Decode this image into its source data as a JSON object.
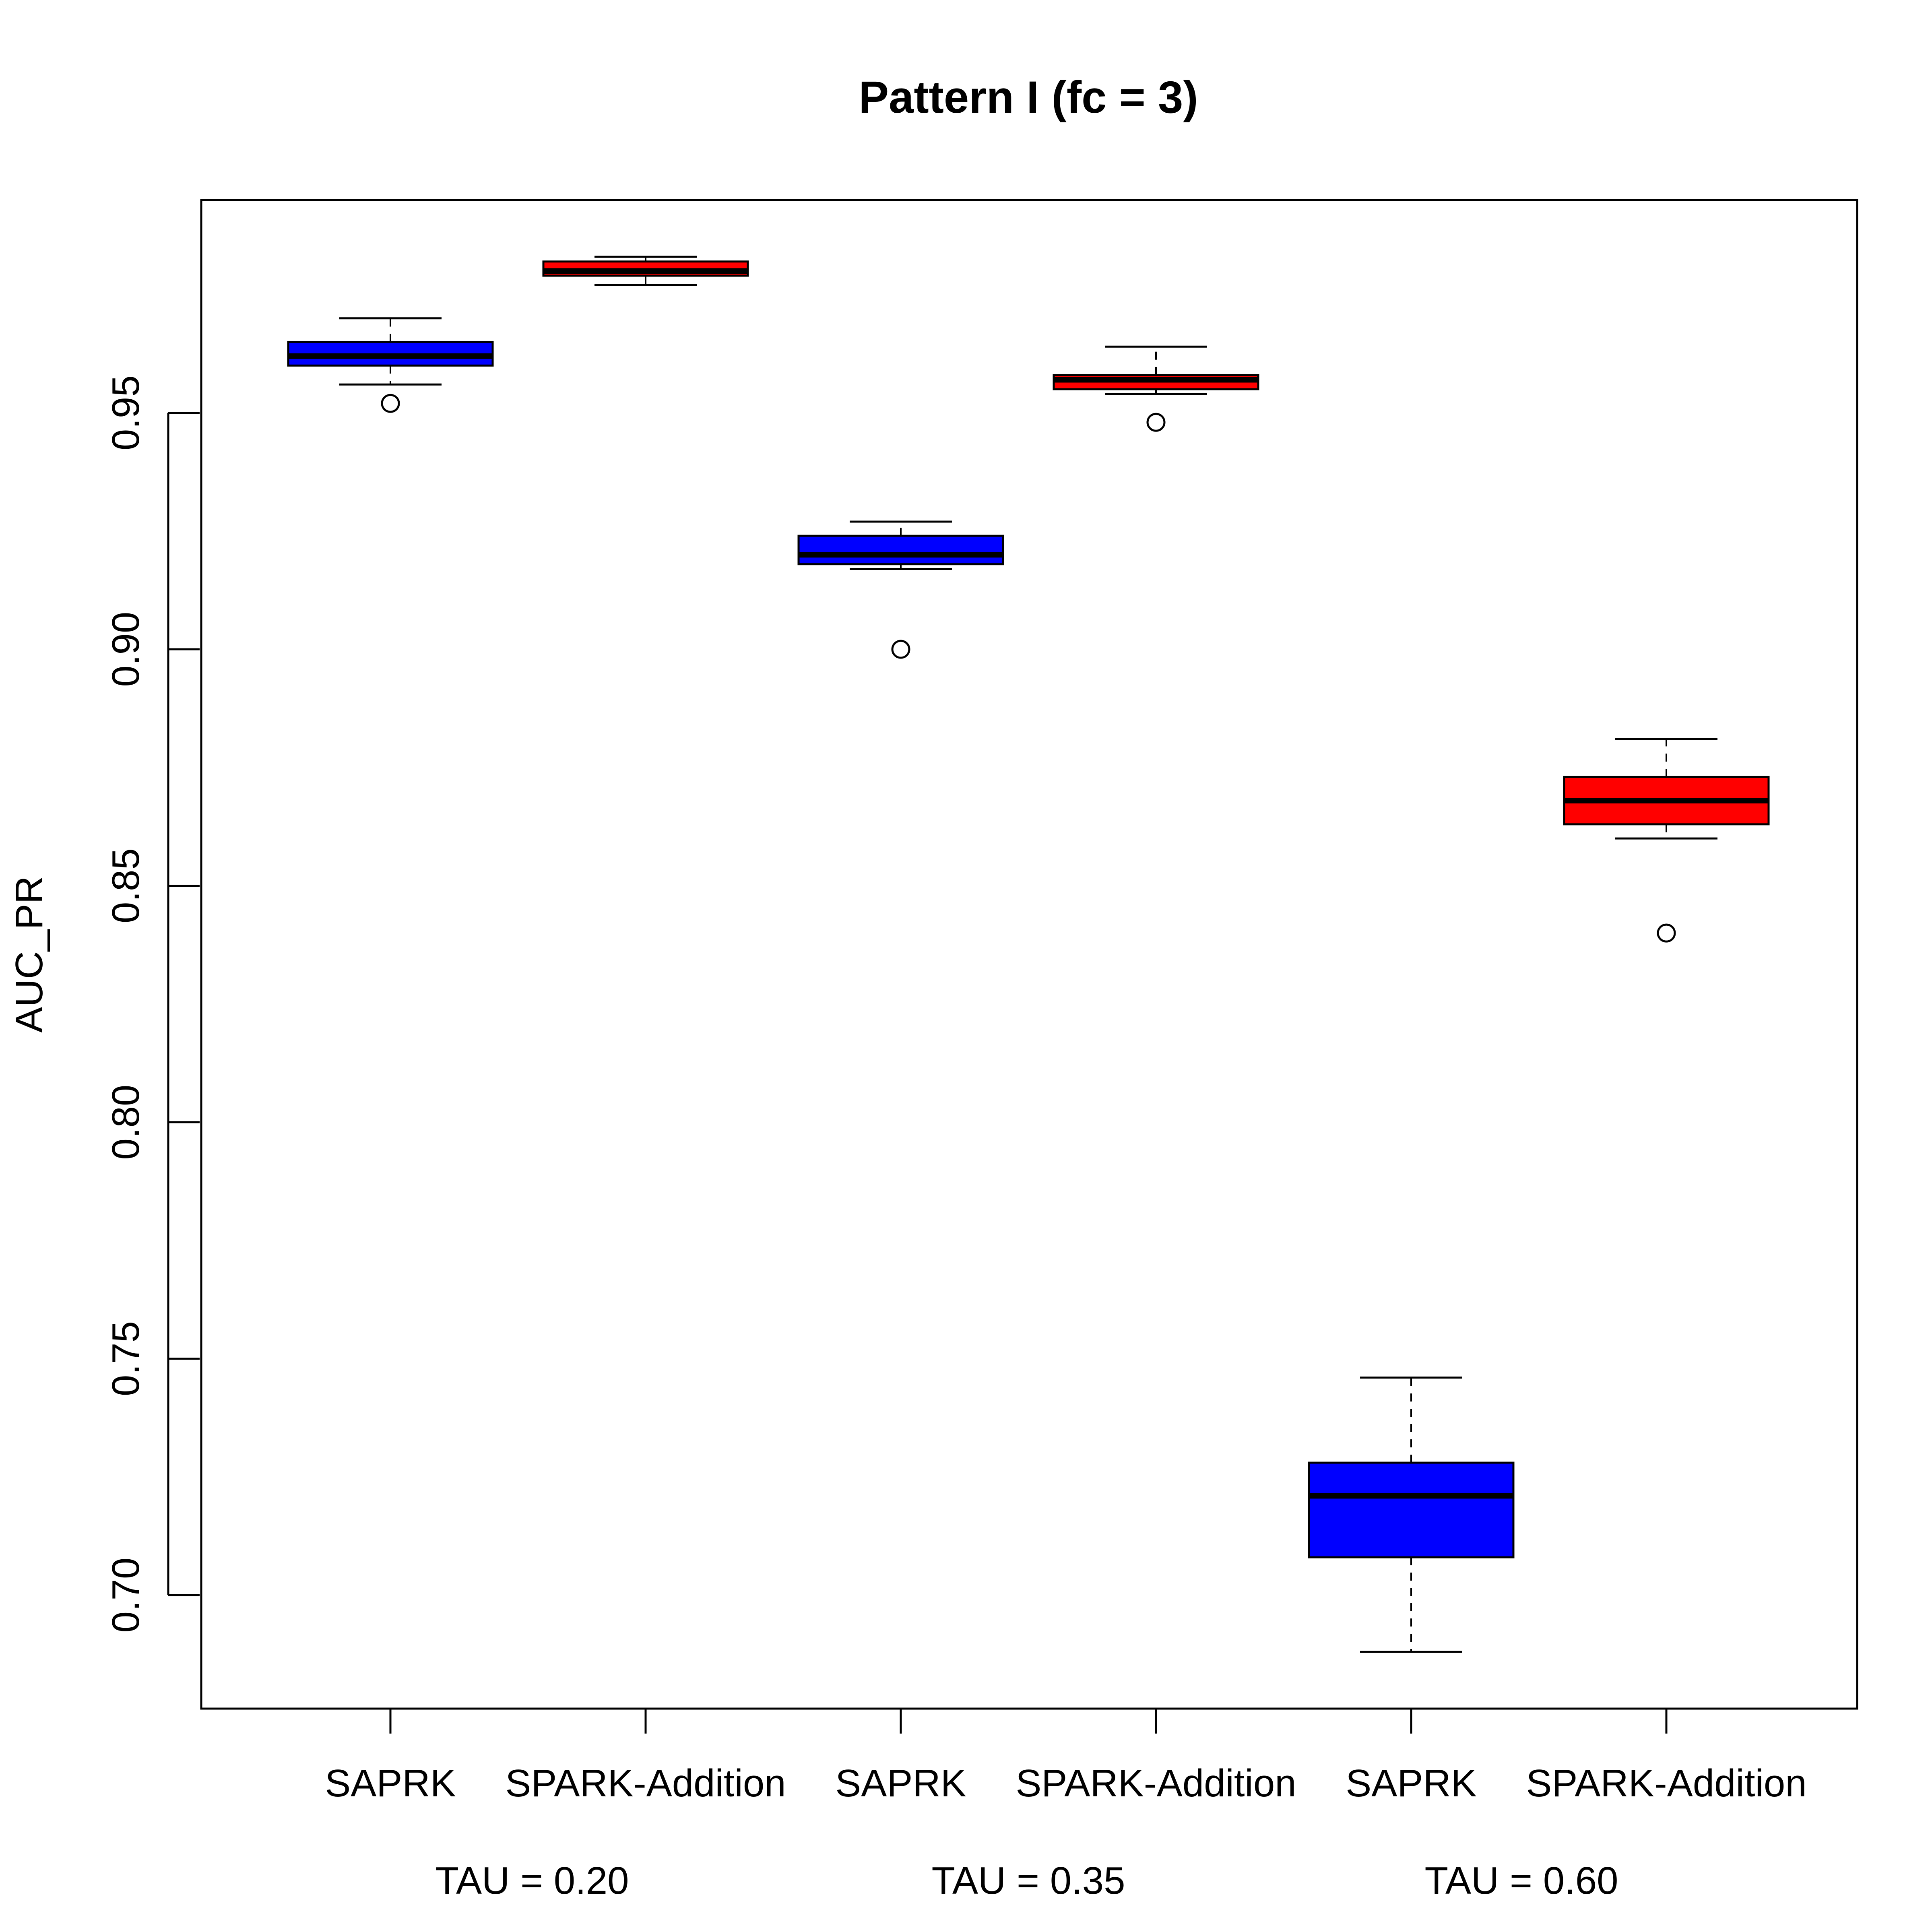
{
  "chart_data": {
    "type": "boxplot",
    "title": "Pattern I (fc = 3)",
    "xlabel": "",
    "ylabel": "AUC_PR",
    "ylim": [
      0.676,
      0.995
    ],
    "yticks": [
      0.7,
      0.75,
      0.8,
      0.85,
      0.9,
      0.95
    ],
    "ytick_labels": [
      "0.70",
      "0.75",
      "0.80",
      "0.85",
      "0.90",
      "0.95"
    ],
    "categories": [
      "SAPRK",
      "SPARK-Addition",
      "SAPRK",
      "SPARK-Addition",
      "SAPRK",
      "SPARK-Addition"
    ],
    "group_labels": [
      "TAU = 0.20",
      "TAU = 0.35",
      "TAU = 0.60"
    ],
    "grid": false,
    "colors": {
      "SAPRK": "#0000ff",
      "SPARK-Addition": "#ff0000"
    },
    "boxes": [
      {
        "category": "SAPRK",
        "group": "TAU = 0.20",
        "color": "#0000ff",
        "whisker_low": 0.956,
        "q1": 0.96,
        "median": 0.962,
        "q3": 0.965,
        "whisker_high": 0.97,
        "outliers": [
          0.952
        ]
      },
      {
        "category": "SPARK-Addition",
        "group": "TAU = 0.20",
        "color": "#ff0000",
        "whisker_low": 0.977,
        "q1": 0.979,
        "median": 0.98,
        "q3": 0.982,
        "whisker_high": 0.983,
        "outliers": []
      },
      {
        "category": "SAPRK",
        "group": "TAU = 0.35",
        "color": "#0000ff",
        "whisker_low": 0.917,
        "q1": 0.918,
        "median": 0.92,
        "q3": 0.924,
        "whisker_high": 0.927,
        "outliers": [
          0.9
        ]
      },
      {
        "category": "SPARK-Addition",
        "group": "TAU = 0.35",
        "color": "#ff0000",
        "whisker_low": 0.954,
        "q1": 0.955,
        "median": 0.957,
        "q3": 0.958,
        "whisker_high": 0.964,
        "outliers": [
          0.948
        ]
      },
      {
        "category": "SAPRK",
        "group": "TAU = 0.60",
        "color": "#0000ff",
        "whisker_low": 0.688,
        "q1": 0.708,
        "median": 0.721,
        "q3": 0.728,
        "whisker_high": 0.746,
        "outliers": []
      },
      {
        "category": "SPARK-Addition",
        "group": "TAU = 0.60",
        "color": "#ff0000",
        "whisker_low": 0.86,
        "q1": 0.863,
        "median": 0.868,
        "q3": 0.873,
        "whisker_high": 0.881,
        "outliers": [
          0.84
        ]
      }
    ]
  }
}
